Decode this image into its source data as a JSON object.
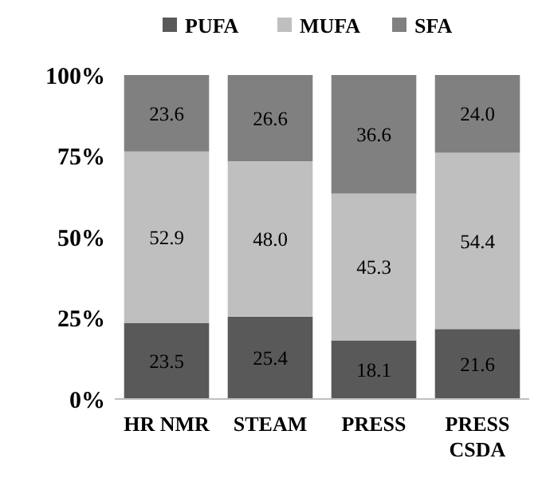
{
  "chart_data": {
    "type": "bar",
    "stacked": true,
    "categories": [
      "HR NMR",
      "STEAM",
      "PRESS",
      "PRESS CSDA"
    ],
    "series": [
      {
        "name": "PUFA",
        "color": "#595959",
        "values": [
          23.5,
          25.4,
          18.1,
          21.6
        ],
        "value_labels": [
          "23.5",
          "25.4",
          "18.1",
          "21.6"
        ]
      },
      {
        "name": "MUFA",
        "color": "#bfbfbf",
        "values": [
          52.9,
          48.0,
          45.3,
          54.4
        ],
        "value_labels": [
          "52.9",
          "48.0",
          "45.3",
          "54.4"
        ]
      },
      {
        "name": "SFA",
        "color": "#808080",
        "values": [
          23.6,
          26.6,
          36.6,
          24.0
        ],
        "value_labels": [
          "23.6",
          "26.6",
          "36.6",
          "24.0"
        ]
      }
    ],
    "ylim": [
      0,
      100
    ],
    "yticks": [
      {
        "value": 0,
        "label": "0%"
      },
      {
        "value": 25,
        "label": "25%"
      },
      {
        "value": 50,
        "label": "50%"
      },
      {
        "value": 75,
        "label": "75%"
      },
      {
        "value": 100,
        "label": "100%"
      }
    ],
    "legend": "top",
    "grid": false
  }
}
